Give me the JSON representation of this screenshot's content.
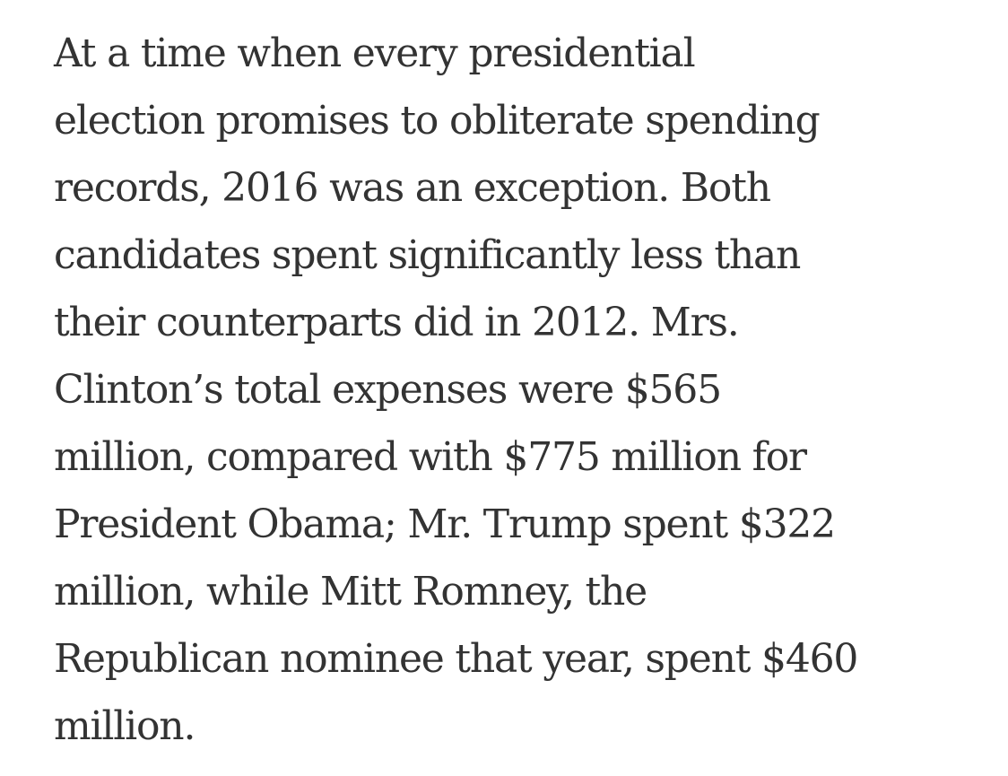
{
  "article": {
    "paragraph_lines": [
      "At a time when every presidential",
      "election promises to obliterate spending",
      "records, 2016 was an exception. Both",
      "candidates spent significantly less than",
      "their counterparts did in 2012. Mrs.",
      "Clinton’s total expenses were $565",
      "million, compared with $775 million for",
      "President Obama; Mr. Trump spent $322",
      "million, while Mitt Romney, the",
      "Republican nominee that year, spent $460",
      "million."
    ]
  }
}
